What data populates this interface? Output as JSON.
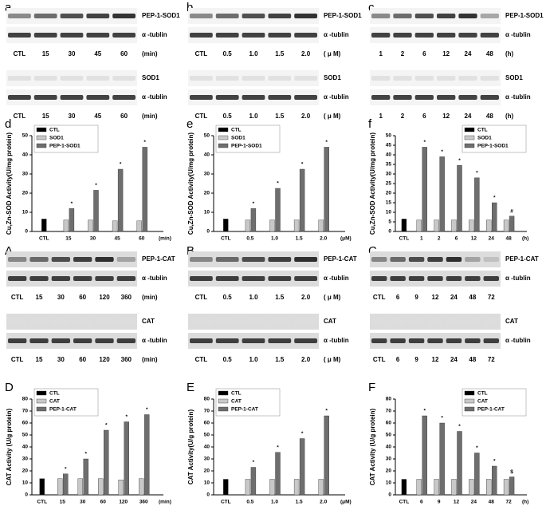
{
  "blots": [
    {
      "letter": "a",
      "groups": [
        {
          "rows": [
            "PEP-1-SOD1",
            "α -tublin"
          ],
          "lanes": [
            "CTL",
            "15",
            "30",
            "45",
            "60"
          ],
          "unit": "(min)"
        },
        {
          "rows": [
            "SOD1",
            "α -tublin"
          ],
          "lanes": [
            "CTL",
            "15",
            "30",
            "45",
            "60"
          ],
          "unit": "(min)"
        }
      ]
    },
    {
      "letter": "b",
      "groups": [
        {
          "rows": [
            "PEP-1-SOD1",
            "α -tublin"
          ],
          "lanes": [
            "CTL",
            "0.5",
            "1.0",
            "1.5",
            "2.0"
          ],
          "unit": "( μ M)"
        },
        {
          "rows": [
            "SOD1",
            "α -tublin"
          ],
          "lanes": [
            "CTL",
            "0.5",
            "1.0",
            "1.5",
            "2.0"
          ],
          "unit": "( μ M)"
        }
      ]
    },
    {
      "letter": "c",
      "groups": [
        {
          "rows": [
            "PEP-1-SOD1",
            "α -tublin"
          ],
          "lanes": [
            "1",
            "2",
            "6",
            "12",
            "24",
            "48"
          ],
          "unit": "(h)"
        },
        {
          "rows": [
            "SOD1",
            "α -tublin"
          ],
          "lanes": [
            "1",
            "2",
            "6",
            "12",
            "24",
            "48"
          ],
          "unit": "(h)"
        }
      ]
    },
    {
      "letter": "A",
      "groups": [
        {
          "rows": [
            "PEP-1-CAT",
            "α -tublin"
          ],
          "lanes": [
            "CTL",
            "15",
            "30",
            "60",
            "120",
            "360"
          ],
          "unit": "(min)"
        },
        {
          "rows": [
            "CAT",
            "α -tublin"
          ],
          "lanes": [
            "CTL",
            "15",
            "30",
            "60",
            "120",
            "360"
          ],
          "unit": "(min)"
        }
      ]
    },
    {
      "letter": "B",
      "groups": [
        {
          "rows": [
            "PEP-1-CAT",
            "α -tublin"
          ],
          "lanes": [
            "CTL",
            "0.5",
            "1.0",
            "1.5",
            "2.0"
          ],
          "unit": "( μ M)"
        },
        {
          "rows": [
            "CAT",
            "α -tublin"
          ],
          "lanes": [
            "CTL",
            "0.5",
            "1.0",
            "1.5",
            "2.0"
          ],
          "unit": "( μ M)"
        }
      ]
    },
    {
      "letter": "C",
      "groups": [
        {
          "rows": [
            "PEP-1-CAT",
            "α -tublin"
          ],
          "lanes": [
            "CTL",
            "6",
            "9",
            "12",
            "24",
            "48",
            "72"
          ],
          "unit": null
        },
        {
          "rows": [
            "CAT",
            "α -tublin"
          ],
          "lanes": [
            "CTL",
            "6",
            "9",
            "12",
            "24",
            "48",
            "72"
          ],
          "unit": null
        }
      ]
    }
  ],
  "chart_data": [
    {
      "type": "bar",
      "label": "d",
      "y_label": "Cu,Zn-SOD Activity(U/mg protein)",
      "x_unit": "(min)",
      "categories": [
        "CTL",
        "15",
        "30",
        "45",
        "60"
      ],
      "ylim": [
        0,
        50
      ],
      "yticks": [
        0,
        10,
        20,
        30,
        40,
        50
      ],
      "legend": "upper left",
      "series": [
        {
          "name": "CTL",
          "color": "#000000",
          "values": [
            6.5,
            null,
            null,
            null,
            null
          ]
        },
        {
          "name": "SOD1",
          "color": "#c8c8c8",
          "values": [
            null,
            6,
            6,
            5.5,
            5.5
          ]
        },
        {
          "name": "PEP-1-SOD1",
          "color": "#6e6e6e",
          "values": [
            null,
            12,
            21.5,
            32.5,
            44
          ],
          "annotations": [
            null,
            "*",
            "*",
            "*",
            "*"
          ]
        }
      ]
    },
    {
      "type": "bar",
      "label": "e",
      "y_label": "Cu,Zn-SOD Activity(U/mg protein)",
      "x_unit": "(μM)",
      "categories": [
        "CTL",
        "0.5",
        "1.0",
        "1.5",
        "2.0"
      ],
      "ylim": [
        0,
        50
      ],
      "yticks": [
        0,
        10,
        20,
        30,
        40,
        50
      ],
      "legend": "upper left",
      "series": [
        {
          "name": "CTL",
          "color": "#000000",
          "values": [
            6.5,
            null,
            null,
            null,
            null
          ]
        },
        {
          "name": "SOD1",
          "color": "#c8c8c8",
          "values": [
            null,
            6,
            6,
            6,
            6
          ]
        },
        {
          "name": "PEP-1-SOD1",
          "color": "#6e6e6e",
          "values": [
            null,
            12,
            22.5,
            32.5,
            44
          ],
          "annotations": [
            null,
            "*",
            "*",
            "*",
            "*"
          ]
        }
      ]
    },
    {
      "type": "bar",
      "label": "f",
      "y_label": "Cu,Zn-SOD Activity(U/mg protein)",
      "x_unit": "(h)",
      "categories": [
        "CTL",
        "1",
        "2",
        "6",
        "12",
        "24",
        "48"
      ],
      "ylim": [
        0,
        50
      ],
      "yticks": [
        0,
        5,
        10,
        15,
        20,
        25,
        30,
        35,
        40,
        45,
        50
      ],
      "legend": "upper right",
      "series": [
        {
          "name": "CTL",
          "color": "#000000",
          "values": [
            6.5,
            null,
            null,
            null,
            null,
            null,
            null
          ]
        },
        {
          "name": "SOD1",
          "color": "#c8c8c8",
          "values": [
            null,
            6,
            6,
            6,
            6,
            6,
            6
          ]
        },
        {
          "name": "PEP-1-SOD1",
          "color": "#6e6e6e",
          "values": [
            null,
            44,
            39,
            34.5,
            28,
            15,
            8
          ],
          "annotations": [
            null,
            "*",
            "*",
            "*",
            "*",
            "*",
            "#"
          ]
        }
      ]
    },
    {
      "type": "bar",
      "label": "D",
      "y_label": "CAT Activity (U/g protein)",
      "x_unit": "(min)",
      "categories": [
        "CTL",
        "15",
        "30",
        "60",
        "120",
        "360"
      ],
      "ylim": [
        0,
        80
      ],
      "yticks": [
        0,
        10,
        20,
        30,
        40,
        50,
        60,
        70,
        80
      ],
      "legend": "upper left",
      "series": [
        {
          "name": "CTL",
          "color": "#000000",
          "values": [
            13.5,
            null,
            null,
            null,
            null,
            null
          ]
        },
        {
          "name": "CAT",
          "color": "#c8c8c8",
          "values": [
            null,
            13.5,
            13.5,
            13.5,
            12.5,
            13.5
          ]
        },
        {
          "name": "PEP-1-CAT",
          "color": "#6e6e6e",
          "values": [
            null,
            17.5,
            30,
            54,
            61,
            67
          ],
          "annotations": [
            null,
            "*",
            "*",
            "*",
            "*",
            "*"
          ]
        }
      ]
    },
    {
      "type": "bar",
      "label": "E",
      "y_label": "CAT Activity(U/g protein)",
      "x_unit": "(μM)",
      "categories": [
        "CTL",
        "0.5",
        "1.0",
        "1.5",
        "2.0"
      ],
      "ylim": [
        0,
        80
      ],
      "yticks": [
        0,
        10,
        20,
        30,
        40,
        50,
        60,
        70,
        80
      ],
      "legend": "upper left",
      "series": [
        {
          "name": "CTL",
          "color": "#000000",
          "values": [
            13,
            null,
            null,
            null,
            null
          ]
        },
        {
          "name": "CAT",
          "color": "#c8c8c8",
          "values": [
            null,
            13,
            13,
            13,
            13
          ]
        },
        {
          "name": "PEP-1-CAT",
          "color": "#6e6e6e",
          "values": [
            null,
            23,
            35.5,
            47,
            66
          ],
          "annotations": [
            null,
            "*",
            "*",
            "*",
            "*"
          ]
        }
      ]
    },
    {
      "type": "bar",
      "label": "F",
      "y_label": "CAT Activity (U/g protein)",
      "x_unit": "(h)",
      "categories": [
        "CTL",
        "6",
        "9",
        "12",
        "24",
        "48",
        "72"
      ],
      "ylim": [
        0,
        80
      ],
      "yticks": [
        0,
        10,
        20,
        30,
        40,
        50,
        60,
        70,
        80
      ],
      "legend": "upper right",
      "series": [
        {
          "name": "CTL",
          "color": "#000000",
          "values": [
            13,
            null,
            null,
            null,
            null,
            null,
            null
          ]
        },
        {
          "name": "CAT",
          "color": "#c8c8c8",
          "values": [
            null,
            13,
            13,
            13,
            13,
            13,
            13
          ]
        },
        {
          "name": "PEP-1-CAT",
          "color": "#6e6e6e",
          "values": [
            null,
            66,
            60,
            53,
            35,
            24,
            15
          ],
          "annotations": [
            null,
            "*",
            "*",
            "*",
            "*",
            "*",
            "$"
          ]
        }
      ]
    }
  ]
}
